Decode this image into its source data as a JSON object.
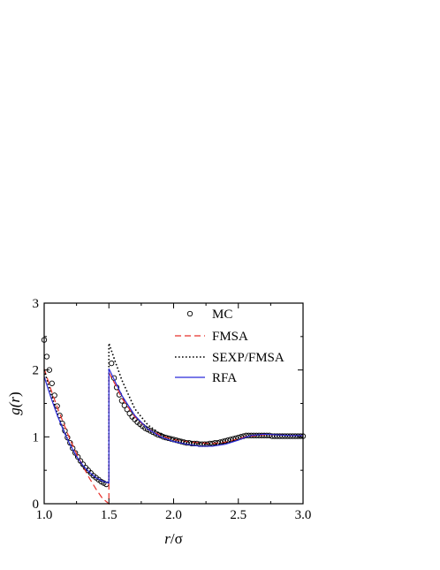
{
  "chart_data": {
    "type": "line",
    "xlabel_var": "r",
    "xlabel_rest": "/σ",
    "ylabel_pre": "g(",
    "ylabel_var": "r",
    "ylabel_post": ")",
    "xlim": [
      1.0,
      3.0
    ],
    "ylim": [
      0,
      3
    ],
    "xticks": [
      "1.0",
      "1.5",
      "2.0",
      "2.5",
      "3.0"
    ],
    "xtick_values": [
      1.0,
      1.5,
      2.0,
      2.5,
      3.0
    ],
    "yticks": [
      "0",
      "1",
      "2",
      "3"
    ],
    "ytick_values": [
      0,
      1,
      2,
      3
    ],
    "grid": false,
    "legend_position": "top-right",
    "series": [
      {
        "name": "MC",
        "style": "markers",
        "marker": "open-circle",
        "color": "#000000",
        "x": [
          1.0,
          1.02,
          1.04,
          1.06,
          1.08,
          1.1,
          1.12,
          1.14,
          1.16,
          1.18,
          1.2,
          1.22,
          1.24,
          1.26,
          1.28,
          1.3,
          1.32,
          1.34,
          1.36,
          1.38,
          1.4,
          1.42,
          1.44,
          1.46,
          1.48,
          1.52,
          1.54,
          1.56,
          1.58,
          1.6,
          1.62,
          1.64,
          1.66,
          1.68,
          1.7,
          1.72,
          1.74,
          1.76,
          1.78,
          1.8,
          1.82,
          1.84,
          1.86,
          1.88,
          1.9,
          1.92,
          1.94,
          1.96,
          1.98,
          2.0,
          2.02,
          2.04,
          2.06,
          2.08,
          2.1,
          2.12,
          2.14,
          2.16,
          2.18,
          2.2,
          2.22,
          2.24,
          2.26,
          2.28,
          2.3,
          2.32,
          2.34,
          2.36,
          2.38,
          2.4,
          2.42,
          2.44,
          2.46,
          2.48,
          2.5,
          2.52,
          2.54,
          2.56,
          2.58,
          2.6,
          2.62,
          2.64,
          2.66,
          2.68,
          2.7,
          2.72,
          2.74,
          2.76,
          2.78,
          2.8,
          2.82,
          2.84,
          2.86,
          2.88,
          2.9,
          2.92,
          2.94,
          2.96,
          2.98,
          3.0
        ],
        "y": [
          2.45,
          2.2,
          2.0,
          1.8,
          1.62,
          1.46,
          1.32,
          1.2,
          1.09,
          0.99,
          0.91,
          0.83,
          0.76,
          0.7,
          0.64,
          0.59,
          0.54,
          0.5,
          0.46,
          0.42,
          0.39,
          0.36,
          0.33,
          0.31,
          0.29,
          2.1,
          1.88,
          1.74,
          1.63,
          1.54,
          1.47,
          1.41,
          1.35,
          1.3,
          1.26,
          1.22,
          1.19,
          1.16,
          1.13,
          1.11,
          1.09,
          1.07,
          1.05,
          1.03,
          1.02,
          1.0,
          0.99,
          0.98,
          0.97,
          0.96,
          0.95,
          0.94,
          0.93,
          0.92,
          0.91,
          0.91,
          0.9,
          0.9,
          0.9,
          0.89,
          0.89,
          0.89,
          0.89,
          0.9,
          0.9,
          0.91,
          0.91,
          0.92,
          0.93,
          0.94,
          0.95,
          0.96,
          0.97,
          0.98,
          0.99,
          1.0,
          1.01,
          1.02,
          1.02,
          1.02,
          1.02,
          1.02,
          1.02,
          1.02,
          1.02,
          1.02,
          1.02,
          1.01,
          1.01,
          1.01,
          1.01,
          1.01,
          1.01,
          1.01,
          1.01,
          1.01,
          1.01,
          1.01,
          1.01,
          1.01
        ]
      },
      {
        "name": "FMSA",
        "style": "dashed",
        "color": "#e8302a",
        "x": [
          1.0,
          1.05,
          1.1,
          1.15,
          1.2,
          1.25,
          1.3,
          1.35,
          1.4,
          1.45,
          1.5,
          1.5,
          1.55,
          1.6,
          1.7,
          1.8,
          1.9,
          2.0,
          2.1,
          2.2,
          2.3,
          2.4,
          2.5,
          2.55,
          2.6,
          2.7,
          2.8,
          2.9,
          3.0
        ],
        "y": [
          2.02,
          1.72,
          1.45,
          1.2,
          0.96,
          0.75,
          0.56,
          0.38,
          0.22,
          0.08,
          0.0,
          1.96,
          1.78,
          1.58,
          1.3,
          1.12,
          1.02,
          0.96,
          0.93,
          0.91,
          0.9,
          0.92,
          0.97,
          1.0,
          1.01,
          1.03,
          1.03,
          1.02,
          1.02
        ]
      },
      {
        "name": "SEXP/FMSA",
        "style": "dotted",
        "color": "#000000",
        "x": [
          1.0,
          1.05,
          1.1,
          1.15,
          1.2,
          1.25,
          1.3,
          1.35,
          1.4,
          1.45,
          1.5,
          1.5,
          1.55,
          1.6,
          1.7,
          1.8,
          1.9,
          2.0,
          2.1,
          2.2,
          2.3,
          2.4,
          2.5,
          2.55,
          2.6,
          2.7,
          2.8,
          2.9,
          3.0
        ],
        "y": [
          2.0,
          1.66,
          1.36,
          1.1,
          0.88,
          0.7,
          0.56,
          0.46,
          0.38,
          0.33,
          0.32,
          2.4,
          2.12,
          1.85,
          1.42,
          1.18,
          1.04,
          0.97,
          0.93,
          0.9,
          0.89,
          0.91,
          0.96,
          0.99,
          1.02,
          1.04,
          1.03,
          1.02,
          1.02
        ]
      },
      {
        "name": "RFA",
        "style": "solid",
        "color": "#2b2bd9",
        "x": [
          1.0,
          1.05,
          1.1,
          1.15,
          1.2,
          1.25,
          1.3,
          1.35,
          1.4,
          1.45,
          1.5,
          1.5,
          1.55,
          1.6,
          1.7,
          1.8,
          1.9,
          2.0,
          2.1,
          2.2,
          2.3,
          2.4,
          2.5,
          2.55,
          2.6,
          2.7,
          2.8,
          2.9,
          3.0
        ],
        "y": [
          1.9,
          1.6,
          1.33,
          1.09,
          0.88,
          0.71,
          0.57,
          0.47,
          0.39,
          0.34,
          0.31,
          2.02,
          1.82,
          1.62,
          1.32,
          1.12,
          1.0,
          0.93,
          0.89,
          0.86,
          0.86,
          0.89,
          0.95,
          0.99,
          1.02,
          1.04,
          1.03,
          1.02,
          1.02
        ]
      }
    ]
  }
}
